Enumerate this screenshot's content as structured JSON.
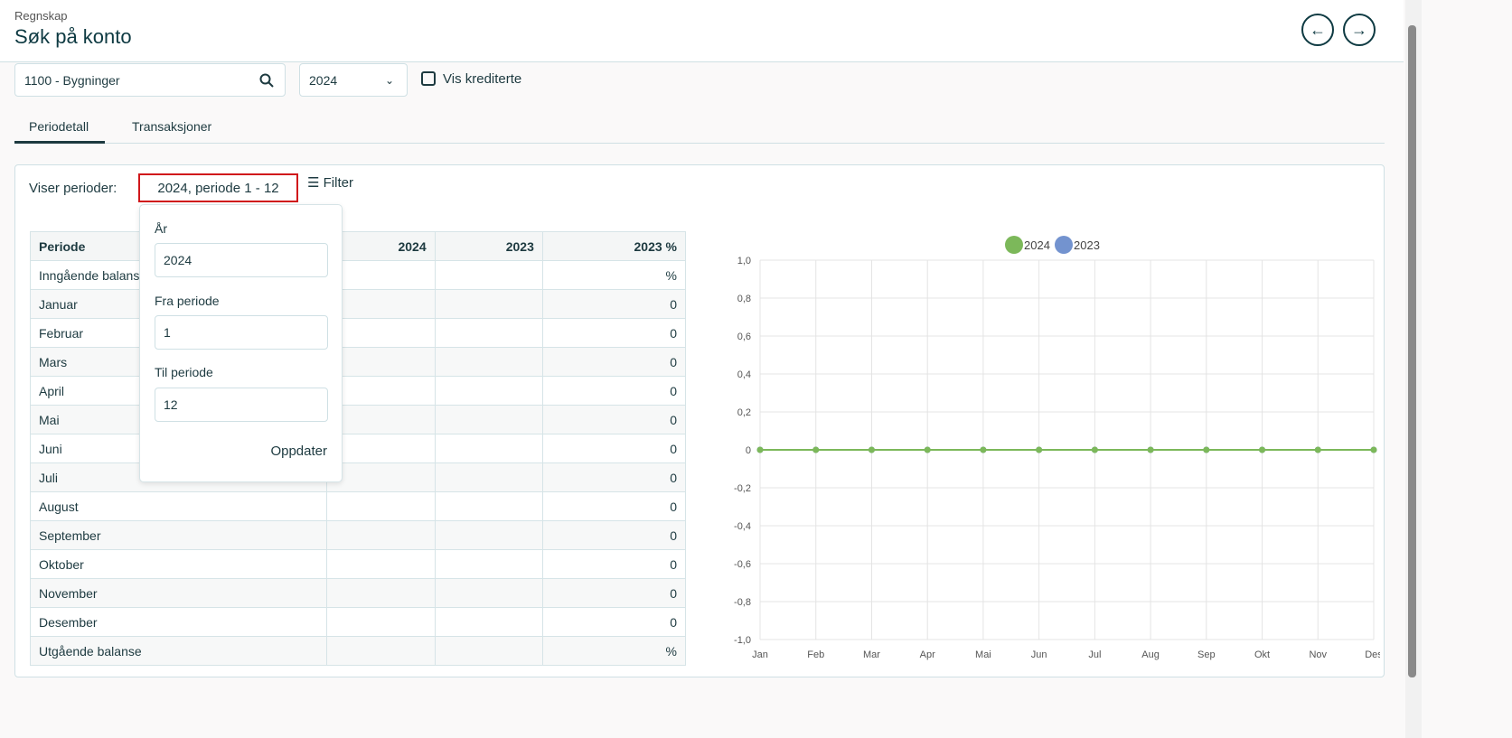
{
  "header": {
    "breadcrumb": "Regnskap",
    "title": "Søk på konto",
    "back_icon": "arrow-left-icon",
    "forward_icon": "arrow-right-icon"
  },
  "filters": {
    "account": "1100 - Bygninger",
    "year": "2024",
    "show_credited_label": "Vis krediterte",
    "show_credited": false
  },
  "tabs": [
    {
      "label": "Periodetall",
      "active": true
    },
    {
      "label": "Transaksjoner",
      "active": false
    }
  ],
  "period": {
    "label": "Viser perioder:",
    "value": "2024, periode 1 - 12",
    "filter_label": "Filter"
  },
  "popover": {
    "year_label": "År",
    "year": "2024",
    "from_label": "Fra periode",
    "from": "1",
    "to_label": "Til periode",
    "to": "12",
    "update": "Oppdater"
  },
  "table": {
    "headers": [
      "Periode",
      "2024",
      "2023",
      "2023 %"
    ],
    "rows": [
      [
        "Inngående balanse",
        "",
        "",
        "%"
      ],
      [
        "Januar",
        "",
        "",
        "0"
      ],
      [
        "Februar",
        "",
        "",
        "0"
      ],
      [
        "Mars",
        "",
        "",
        "0"
      ],
      [
        "April",
        "",
        "",
        "0"
      ],
      [
        "Mai",
        "",
        "",
        "0"
      ],
      [
        "Juni",
        "",
        "",
        "0"
      ],
      [
        "Juli",
        "",
        "",
        "0"
      ],
      [
        "August",
        "",
        "",
        "0"
      ],
      [
        "September",
        "",
        "",
        "0"
      ],
      [
        "Oktober",
        "",
        "",
        "0"
      ],
      [
        "November",
        "",
        "",
        "0"
      ],
      [
        "Desember",
        "",
        "",
        "0"
      ],
      [
        "Utgående balanse",
        "",
        "",
        "%"
      ]
    ]
  },
  "chart_data": {
    "type": "line",
    "categories": [
      "Jan",
      "Feb",
      "Mar",
      "Apr",
      "Mai",
      "Jun",
      "Jul",
      "Aug",
      "Sep",
      "Okt",
      "Nov",
      "Des"
    ],
    "series": [
      {
        "name": "2024",
        "color": "#7cb85a",
        "values": [
          0,
          0,
          0,
          0,
          0,
          0,
          0,
          0,
          0,
          0,
          0,
          0
        ]
      },
      {
        "name": "2023",
        "color": "#7393cf",
        "values": [
          0,
          0,
          0,
          0,
          0,
          0,
          0,
          0,
          0,
          0,
          0,
          0
        ]
      }
    ],
    "ylim": [
      -1,
      1
    ],
    "yticks": [
      "1,0",
      "0,8",
      "0,6",
      "0,4",
      "0,2",
      "0",
      "-0,2",
      "-0,4",
      "-0,6",
      "-0,8",
      "-1,0"
    ],
    "grid": true,
    "legend": "top"
  }
}
